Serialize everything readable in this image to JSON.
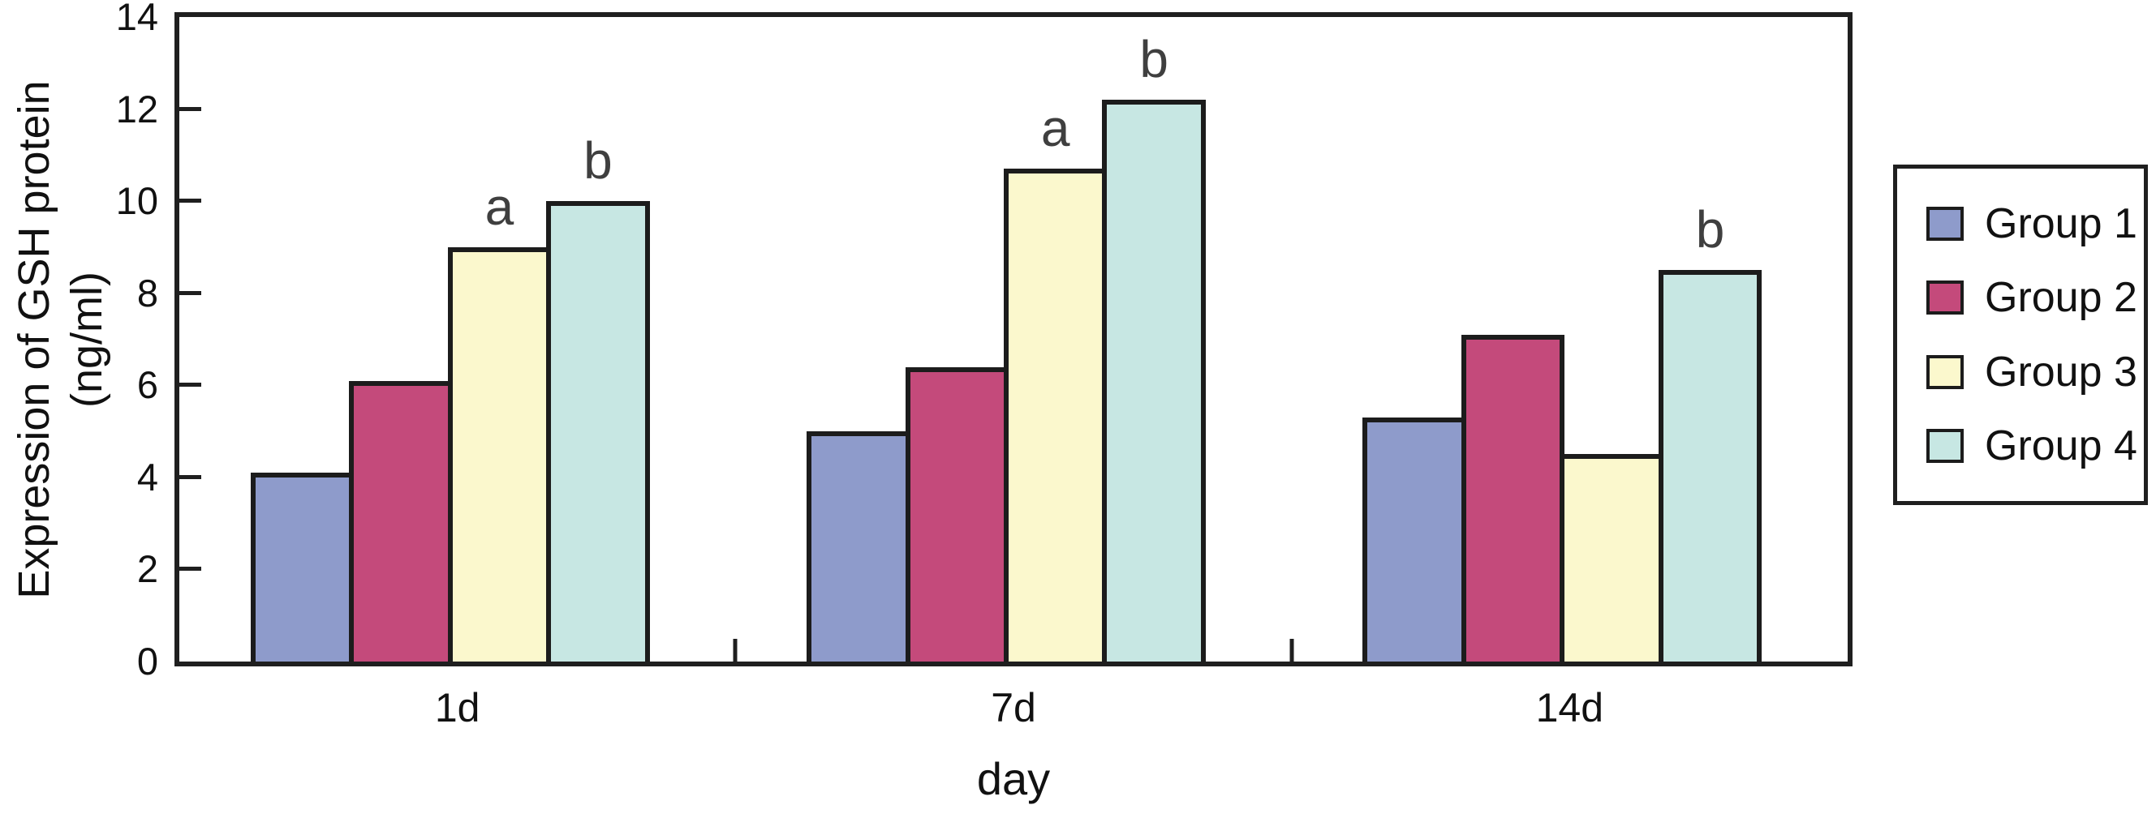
{
  "figure": {
    "background": "#ffffff",
    "axis_color": "#1f1f1f",
    "bar_border_color": "#1c1c1c",
    "annotation_color": "#3f3f3f"
  },
  "chart_data": {
    "type": "bar",
    "title": "",
    "categories": [
      "1d",
      "7d",
      "14d"
    ],
    "series": [
      {
        "name": "Group 1",
        "color": "#8e9bcb",
        "values": [
          4.1,
          5.0,
          5.3
        ]
      },
      {
        "name": "Group 2",
        "color": "#c44a7b",
        "values": [
          6.1,
          6.4,
          7.1
        ]
      },
      {
        "name": "Group 3",
        "color": "#fbf8cd",
        "values": [
          9.0,
          10.7,
          4.5
        ]
      },
      {
        "name": "Group 4",
        "color": "#c7e7e3",
        "values": [
          10.0,
          12.2,
          8.5
        ]
      }
    ],
    "annotations": [
      {
        "category": "1d",
        "series": "Group 3",
        "text": "a"
      },
      {
        "category": "1d",
        "series": "Group 4",
        "text": "b"
      },
      {
        "category": "7d",
        "series": "Group 3",
        "text": "a"
      },
      {
        "category": "7d",
        "series": "Group 4",
        "text": "b"
      },
      {
        "category": "14d",
        "series": "Group 4",
        "text": "b"
      }
    ],
    "xlabel": "day",
    "ylabel_line1": "Expression of GSH protein",
    "ylabel_line2": "(ng/ml)",
    "ylim": [
      0,
      14
    ],
    "y_ticks": [
      0,
      2,
      4,
      6,
      8,
      10,
      12,
      14
    ],
    "grid": false,
    "legend_position": "right",
    "legend_labels": [
      "Group 1",
      "Group 2",
      "Group 3",
      "Group 4"
    ]
  }
}
